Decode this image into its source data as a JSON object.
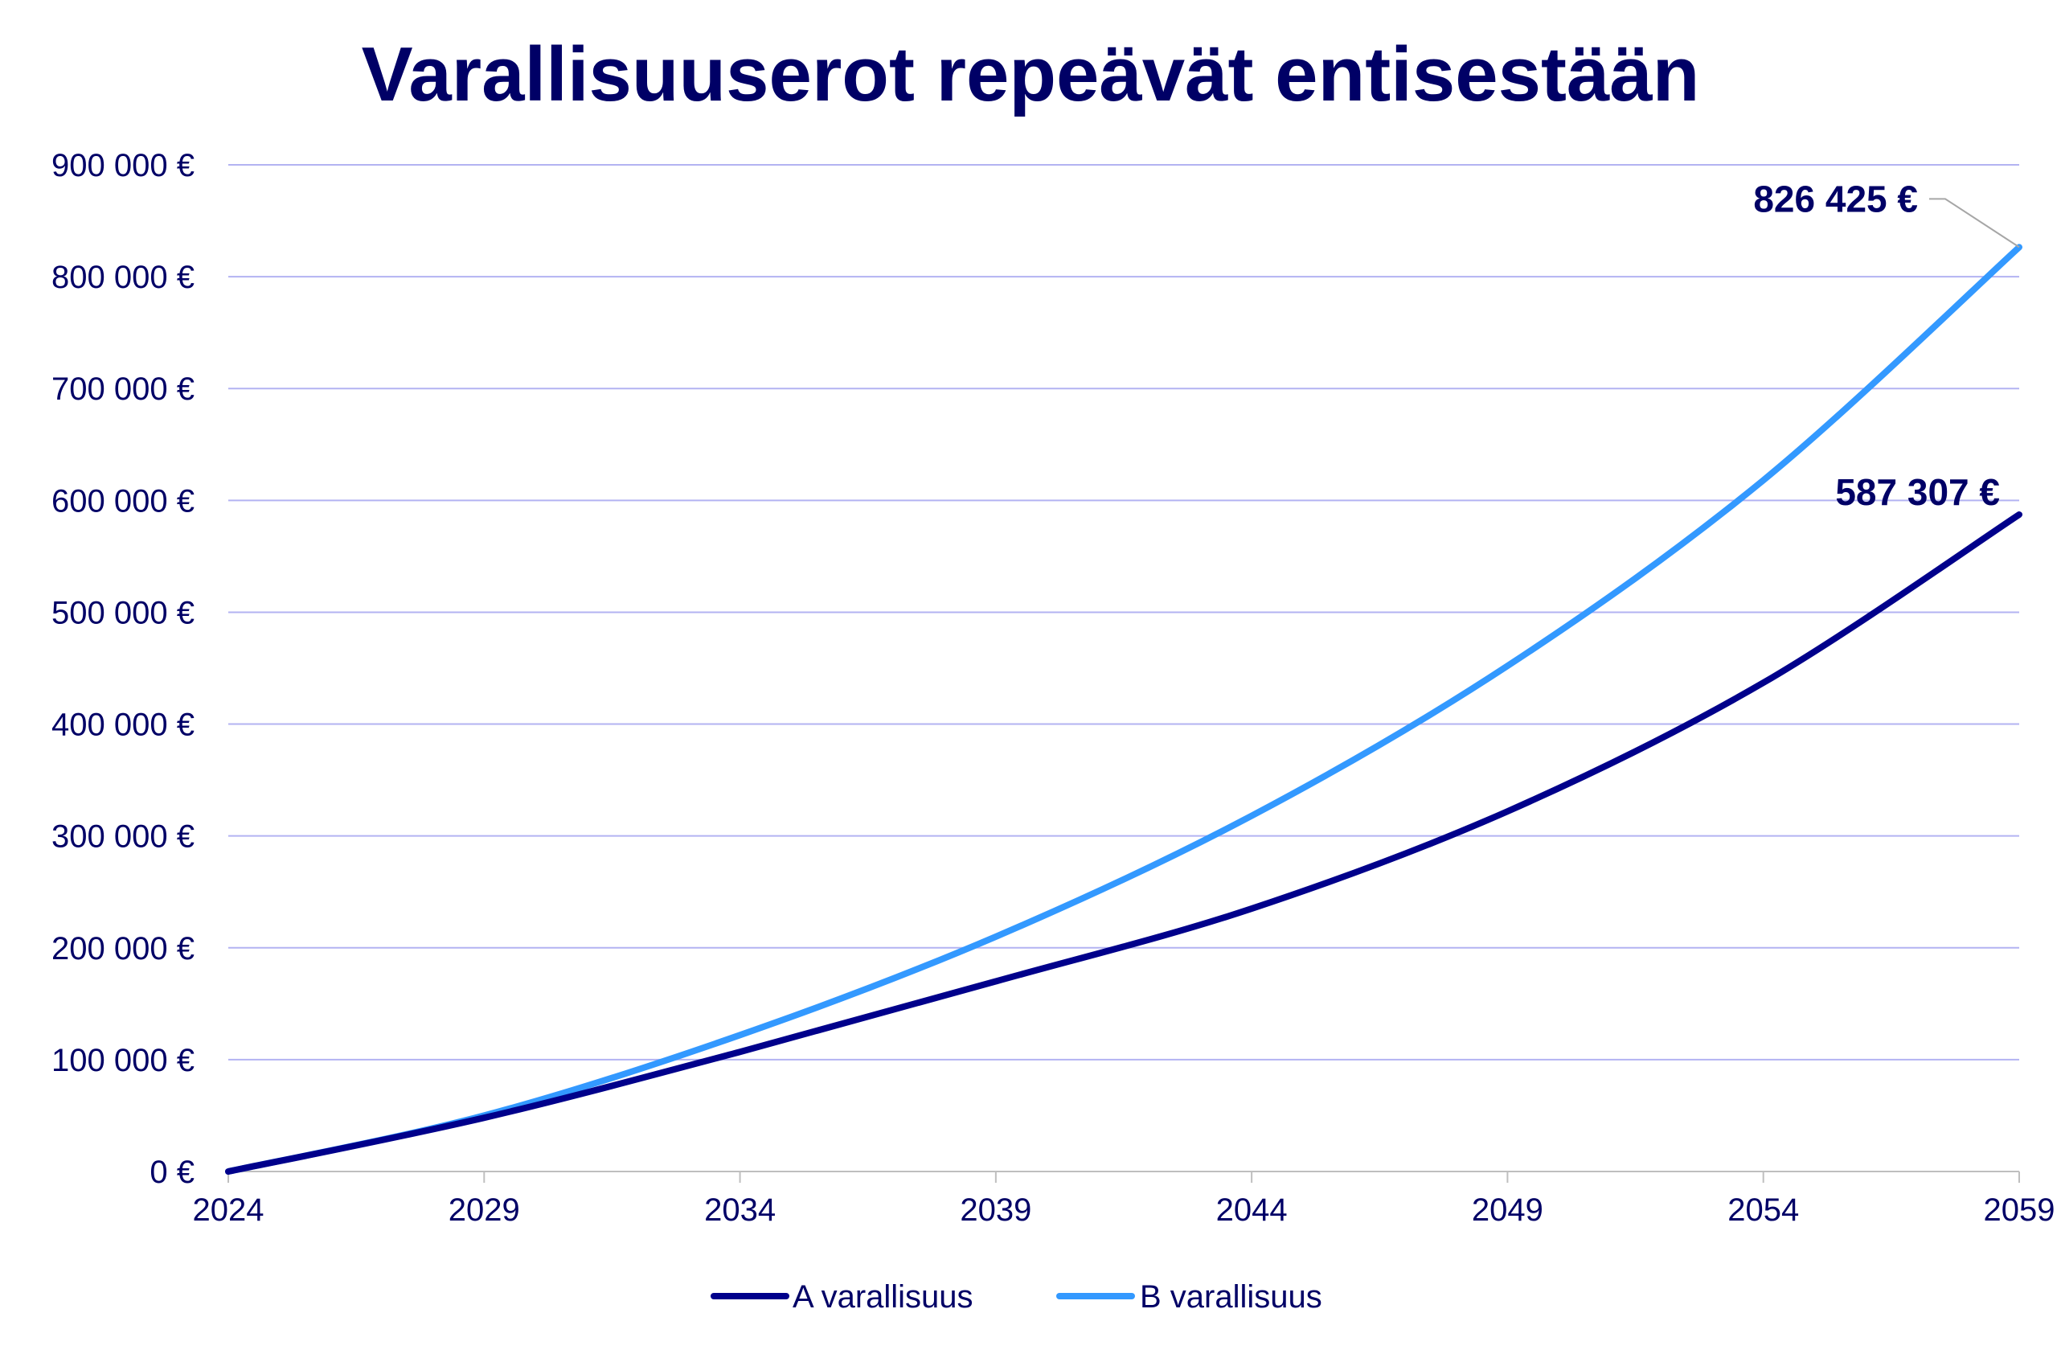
{
  "chart_data": {
    "type": "line",
    "title": "Varallisuuserot repeävät entisestään",
    "xlabel": "",
    "ylabel": "",
    "x": [
      2024,
      2029,
      2034,
      2039,
      2044,
      2049,
      2054,
      2059
    ],
    "x_tick_labels": [
      "2024",
      "2029",
      "2034",
      "2039",
      "2044",
      "2049",
      "2054",
      "2059"
    ],
    "y_ticks": [
      0,
      100000,
      200000,
      300000,
      400000,
      500000,
      600000,
      700000,
      800000,
      900000
    ],
    "y_tick_labels": [
      "0 €",
      "100 000 €",
      "200 000 €",
      "300 000 €",
      "400 000 €",
      "500 000 €",
      "600 000 €",
      "700 000 €",
      "800 000 €",
      "900 000 €"
    ],
    "xlim": [
      2024,
      2059
    ],
    "ylim": [
      0,
      900000
    ],
    "grid": true,
    "legend_position": "bottom",
    "series": [
      {
        "name": "A varallisuus",
        "color": "#00008B",
        "values": [
          0,
          48000,
          107000,
          170000,
          235000,
          322000,
          437000,
          587307
        ]
      },
      {
        "name": "B varallisuus",
        "color": "#3399FF",
        "values": [
          0,
          50000,
          122000,
          210000,
          318000,
          452000,
          618000,
          826425
        ]
      }
    ],
    "data_labels": [
      {
        "series": 1,
        "text": "826 425 €"
      },
      {
        "series": 0,
        "text": "587 307 €"
      }
    ],
    "colors": {
      "text": "#000066",
      "gridline": "#B3B3F2",
      "axis": "#BFBFBF",
      "leader": "#A6A6A6"
    }
  }
}
